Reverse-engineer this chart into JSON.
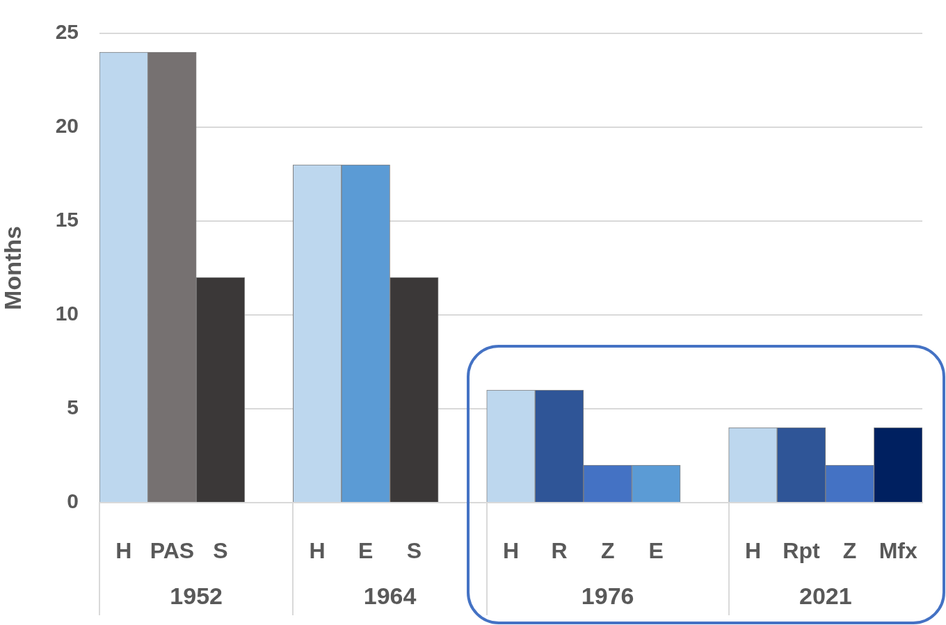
{
  "chart_data": {
    "type": "bar",
    "ylabel": "Months",
    "categories": [
      "H",
      "PAS",
      "S",
      null,
      "H",
      "E",
      "S",
      null,
      "H",
      "R",
      "Z",
      "E",
      null,
      "H",
      "Rpt",
      "Z",
      "Mfx"
    ],
    "values": [
      24,
      24,
      12,
      null,
      18,
      18,
      12,
      null,
      6,
      6,
      2,
      2,
      null,
      4,
      4,
      2,
      4
    ],
    "colors": [
      "#bdd7ee",
      "#767171",
      "#3b3838",
      "#ffffff",
      "#bdd7ee",
      "#5b9bd5",
      "#3b3838",
      "#ffffff",
      "#bdd7ee",
      "#2f5597",
      "#4472c4",
      "#5b9bd5",
      "#ffffff",
      "#bdd7ee",
      "#2f5597",
      "#4472c4",
      "#002060"
    ],
    "ylim": [
      0,
      25
    ],
    "yticks": [
      0,
      5,
      10,
      15,
      20,
      25
    ],
    "grid": "y",
    "legend": false,
    "annotations": [
      "1952",
      "1964",
      "1976",
      "2021"
    ]
  }
}
